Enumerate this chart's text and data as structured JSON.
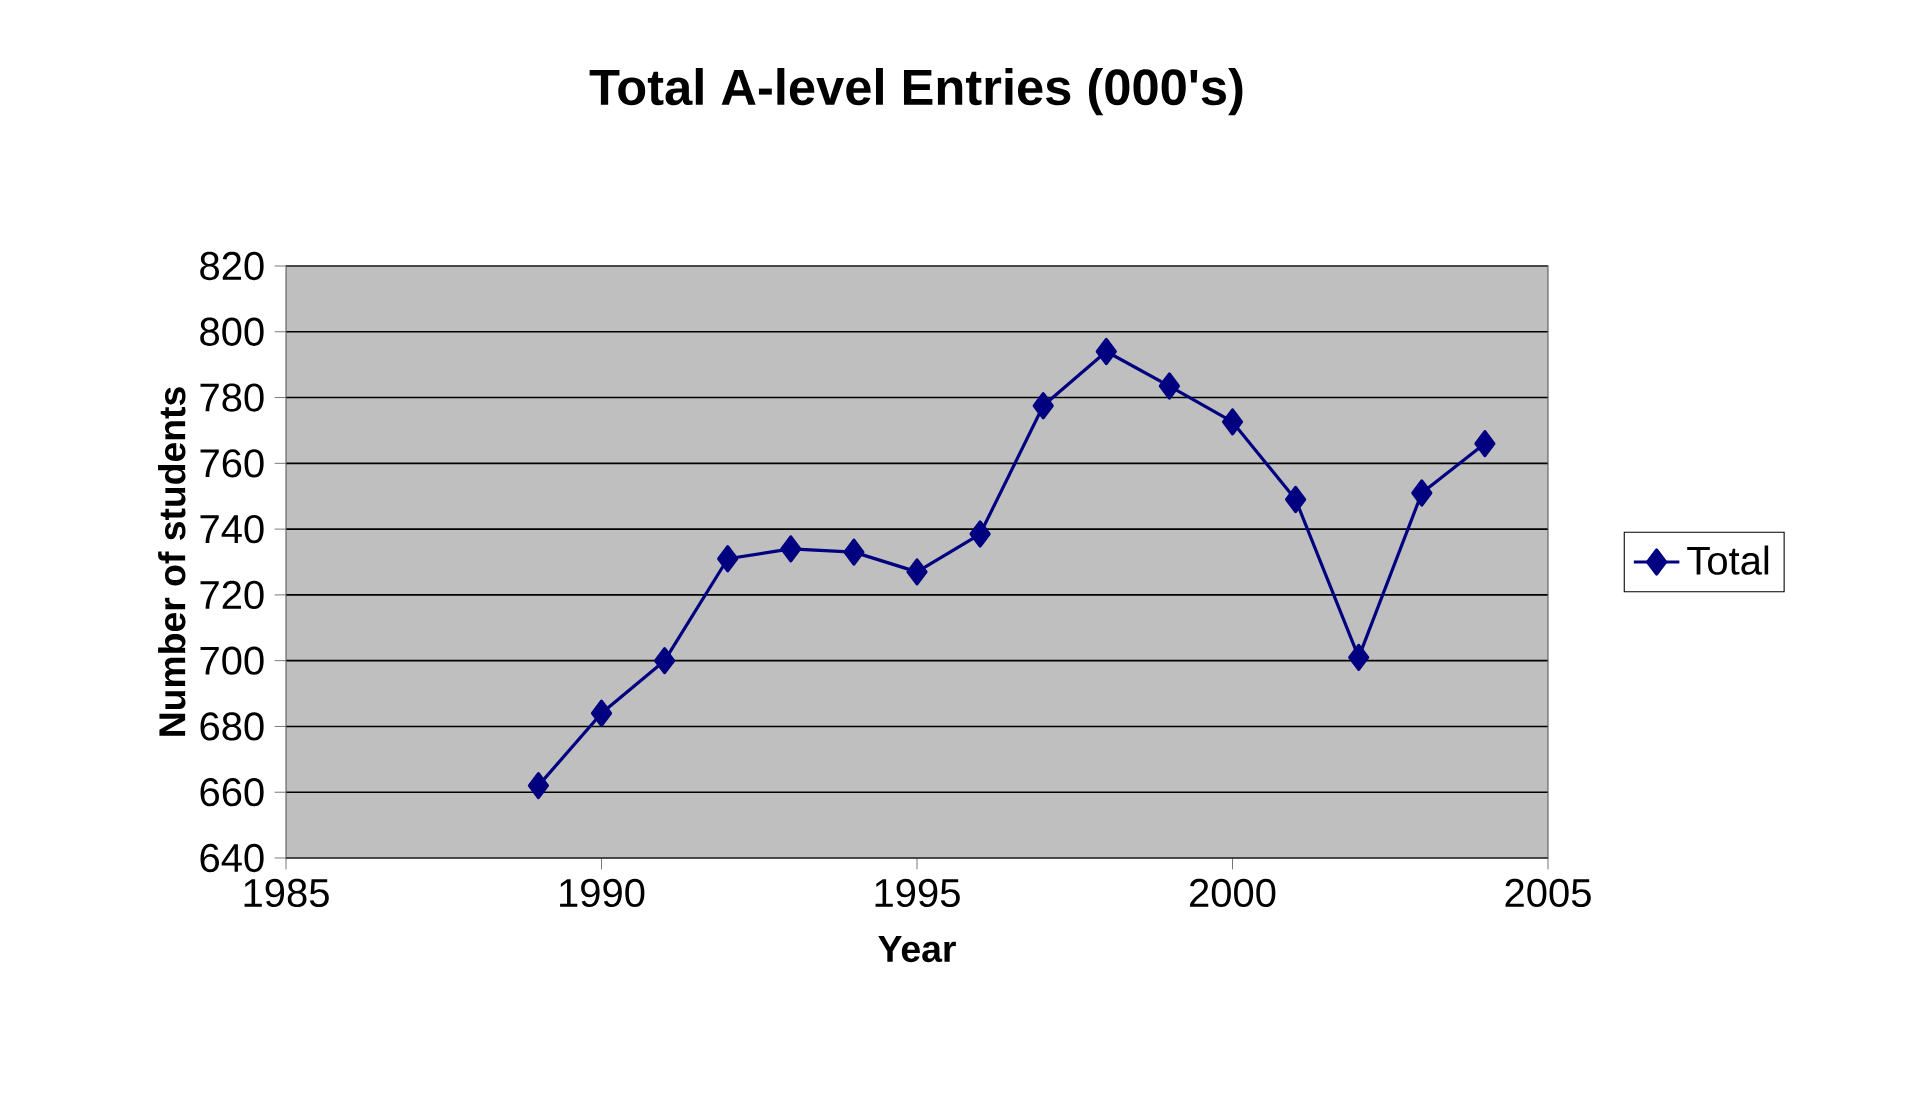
{
  "chart_data": {
    "type": "line",
    "title": "Total A-level Entries (000's)",
    "xlabel": "Year",
    "ylabel": "Number of students",
    "x": [
      1989,
      1990,
      1991,
      1992,
      1993,
      1994,
      1995,
      1996,
      1997,
      1998,
      1999,
      2000,
      2001,
      2002,
      2003,
      2004
    ],
    "series": [
      {
        "name": "Total",
        "color": "#000080",
        "values": [
          662,
          684,
          700,
          731,
          734,
          733,
          727,
          738.5,
          777.5,
          794,
          783.5,
          772.6,
          749,
          701,
          751,
          766
        ]
      }
    ],
    "xlim": [
      1985,
      2005
    ],
    "xticks": [
      1985,
      1990,
      1995,
      2000,
      2005
    ],
    "ylim": [
      640,
      820
    ],
    "yticks": [
      640,
      660,
      680,
      700,
      720,
      740,
      760,
      780,
      800,
      820
    ],
    "grid": "y",
    "legend": "right",
    "marker": "diamond",
    "line_style": "solid"
  }
}
